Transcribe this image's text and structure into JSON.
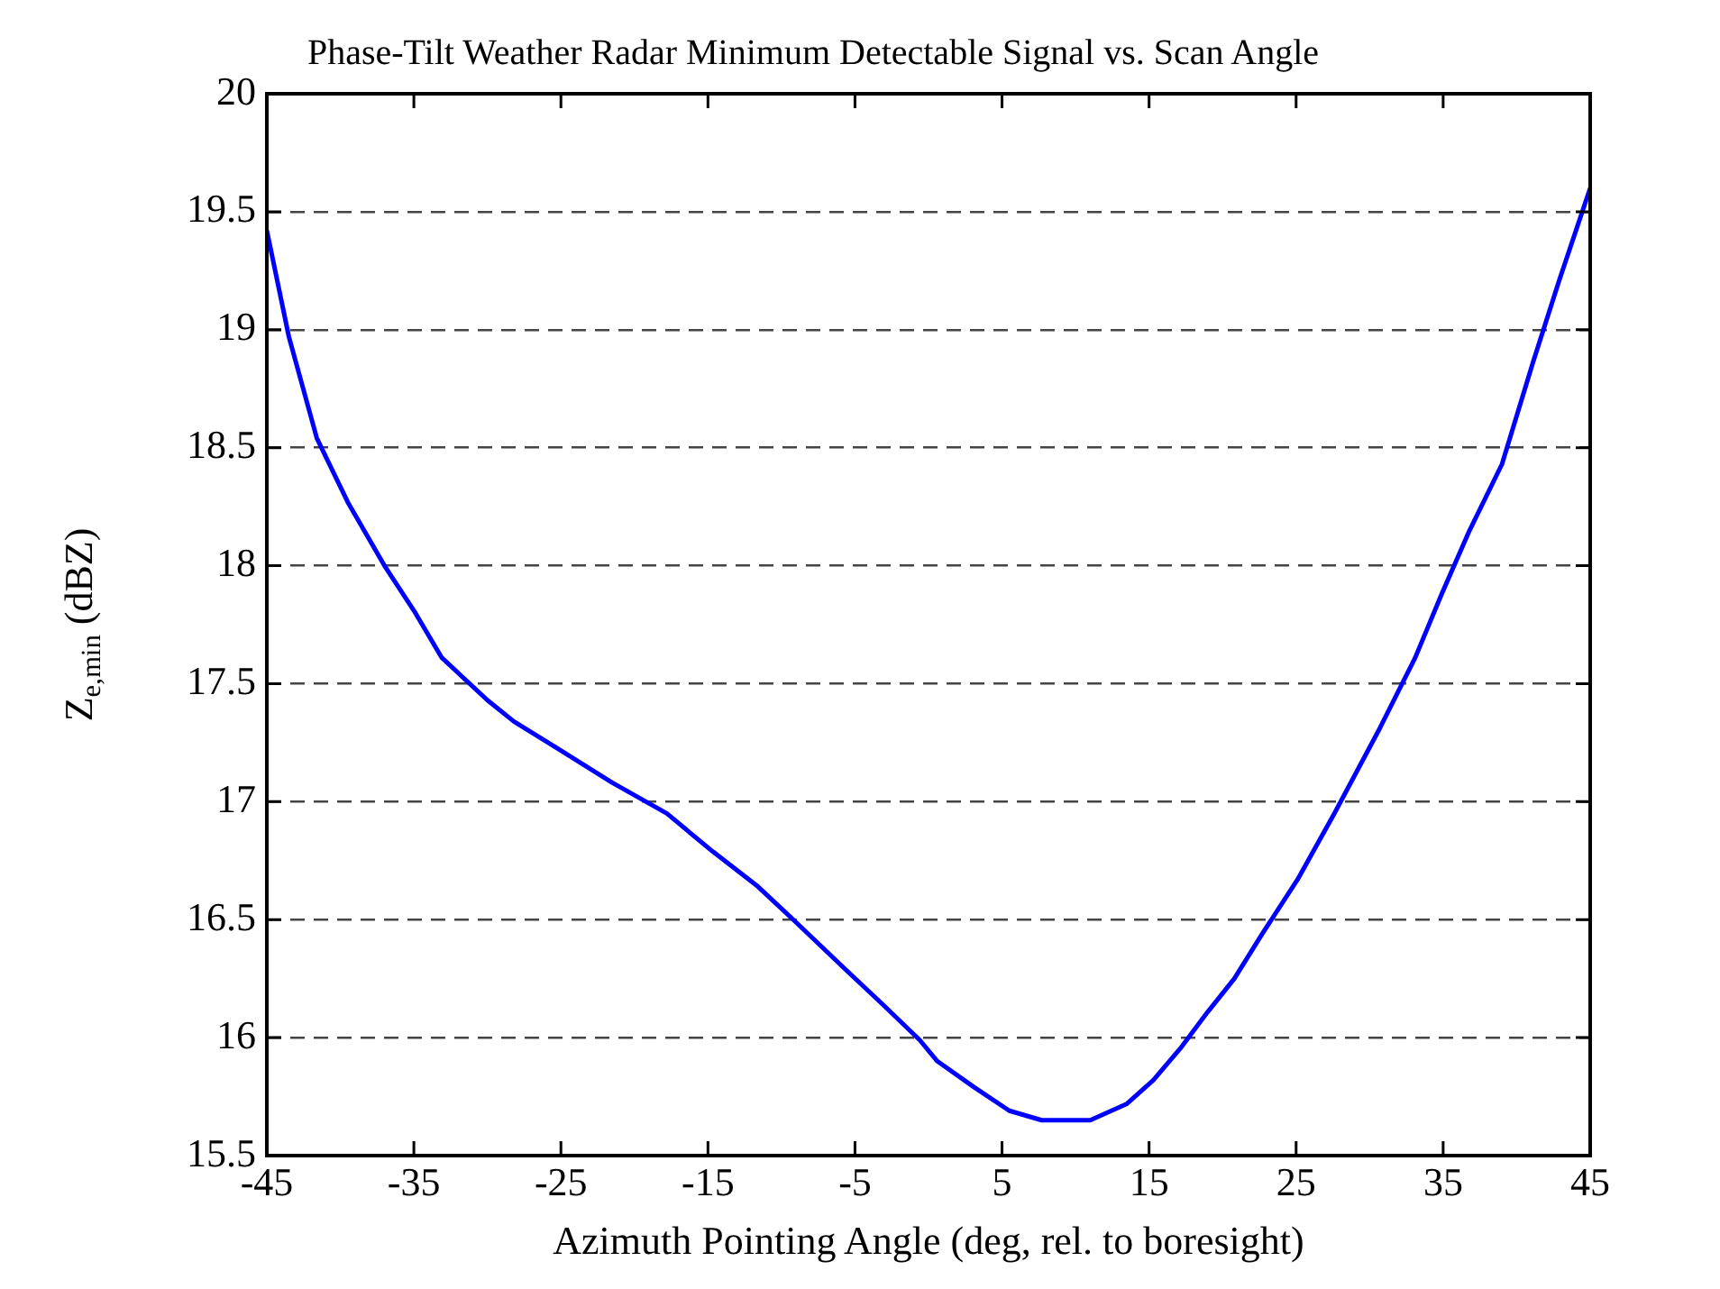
{
  "chart_data": {
    "type": "line",
    "title": "Phase-Tilt Weather Radar Minimum Detectable Signal vs. Scan Angle",
    "xlabel": "Azimuth Pointing Angle (deg, rel. to boresight)",
    "ylabel": "Z$_{e,min}$ (dBZ)",
    "x": [
      -45,
      -43.5,
      -41.6,
      -39.5,
      -37,
      -34.9,
      -33.1,
      -30,
      -28.2,
      -25.1,
      -21.5,
      -17.8,
      -14.7,
      -11.6,
      -9.2,
      -5.5,
      -3.1,
      -0.6,
      0.6,
      3.1,
      5.5,
      7.7,
      11,
      13.5,
      15.3,
      17.2,
      19,
      20.8,
      22.7,
      25.1,
      27.6,
      30.6,
      33.1,
      34.9,
      36.8,
      39,
      41.1,
      42.9,
      45
    ],
    "series": [
      {
        "color": "#0000ff",
        "values": [
          19.42,
          18.97,
          18.54,
          18.27,
          18,
          17.8,
          17.61,
          17.43,
          17.34,
          17.22,
          17.08,
          16.95,
          16.79,
          16.64,
          16.5,
          16.28,
          16.14,
          15.99,
          15.9,
          15.79,
          15.69,
          15.65,
          15.65,
          15.72,
          15.82,
          15.96,
          16.11,
          16.25,
          16.44,
          16.67,
          16.95,
          17.3,
          17.61,
          17.88,
          18.15,
          18.43,
          18.86,
          19.21,
          19.6
        ]
      }
    ],
    "xlim": [
      -45,
      45
    ],
    "xticks": [
      -45,
      -35,
      -25,
      -15,
      -5,
      5,
      15,
      25,
      35,
      45
    ],
    "ylim": [
      15.5,
      20
    ],
    "yticks": [
      15.5,
      16,
      16.5,
      17,
      17.5,
      18,
      18.5,
      19,
      19.5,
      20
    ],
    "grid": "y",
    "line_style": "solid",
    "marker": "none",
    "legend": false
  }
}
